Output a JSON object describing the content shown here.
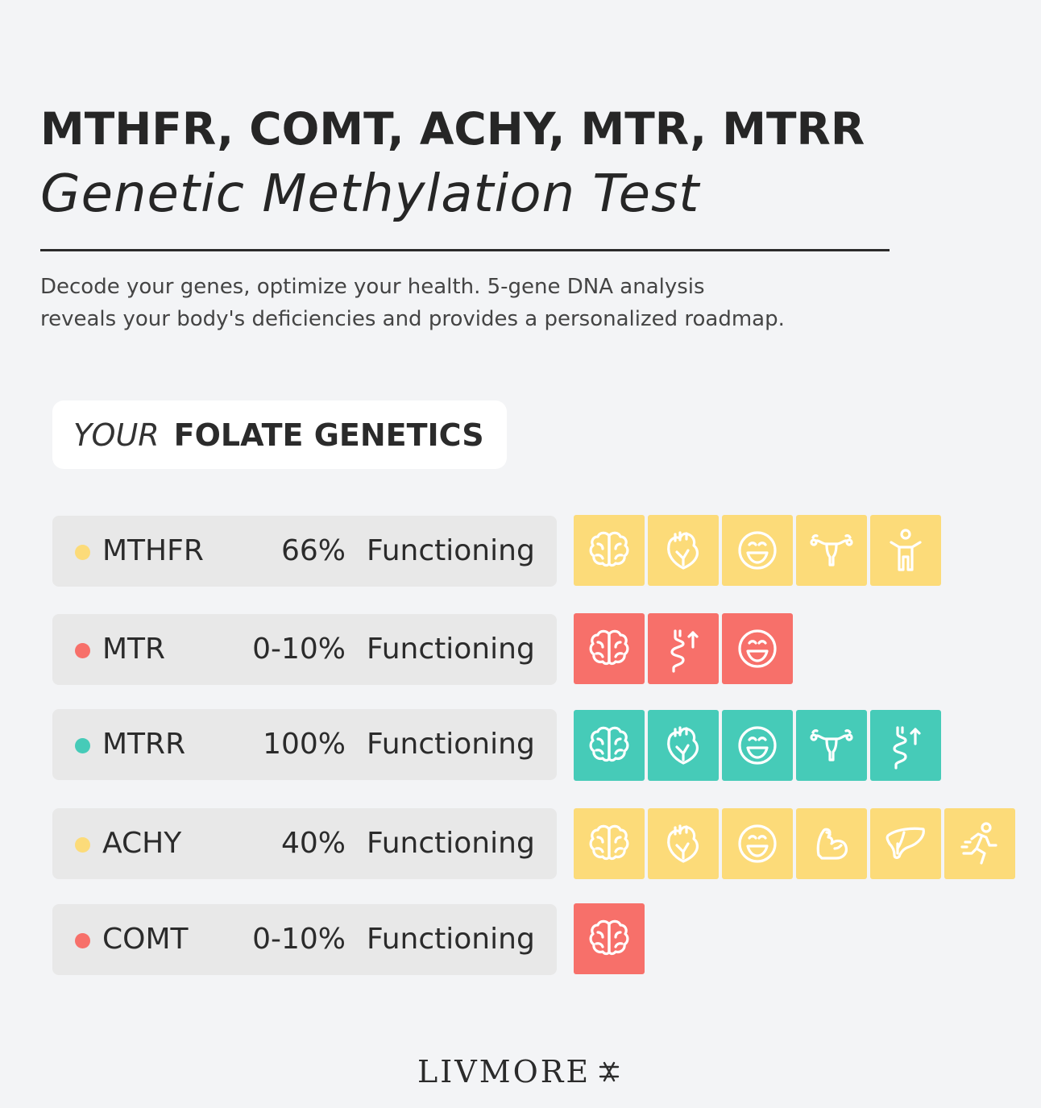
{
  "header": {
    "title": "MTHFR, COMT, ACHY, MTR, MTRR",
    "subtitle": "Genetic Methylation Test",
    "description_line1": "Decode your genes, optimize your health. 5-gene DNA analysis",
    "description_line2": "reveals your body's deficiencies and provides a personalized roadmap."
  },
  "section": {
    "label_italic": "YOUR",
    "label_bold": "FOLATE GENETICS"
  },
  "colors": {
    "yellow": "#fcdb79",
    "red": "#f7706a",
    "teal": "#46cbb8"
  },
  "genes": [
    {
      "name": "MTHFR",
      "percent": "66%",
      "status": "Functioning",
      "color": "yellow",
      "icons": [
        "brain-icon",
        "heart-icon",
        "smile-icon",
        "uterus-icon",
        "person-icon"
      ]
    },
    {
      "name": "MTR",
      "percent": "0-10%",
      "status": "Functioning",
      "color": "red",
      "icons": [
        "brain-icon",
        "intestine-icon",
        "smile-icon"
      ]
    },
    {
      "name": "MTRR",
      "percent": "100%",
      "status": "Functioning",
      "color": "teal",
      "icons": [
        "brain-icon",
        "heart-icon",
        "smile-icon",
        "uterus-icon",
        "intestine-icon"
      ]
    },
    {
      "name": "ACHY",
      "percent": "40%",
      "status": "Functioning",
      "color": "yellow",
      "icons": [
        "brain-icon",
        "heart-icon",
        "smile-icon",
        "muscle-icon",
        "liver-icon",
        "running-icon"
      ]
    },
    {
      "name": "COMT",
      "percent": "0-10%",
      "status": "Functioning",
      "color": "red",
      "icons": [
        "brain-icon"
      ]
    }
  ],
  "footer": {
    "brand": "LIVMORE"
  }
}
